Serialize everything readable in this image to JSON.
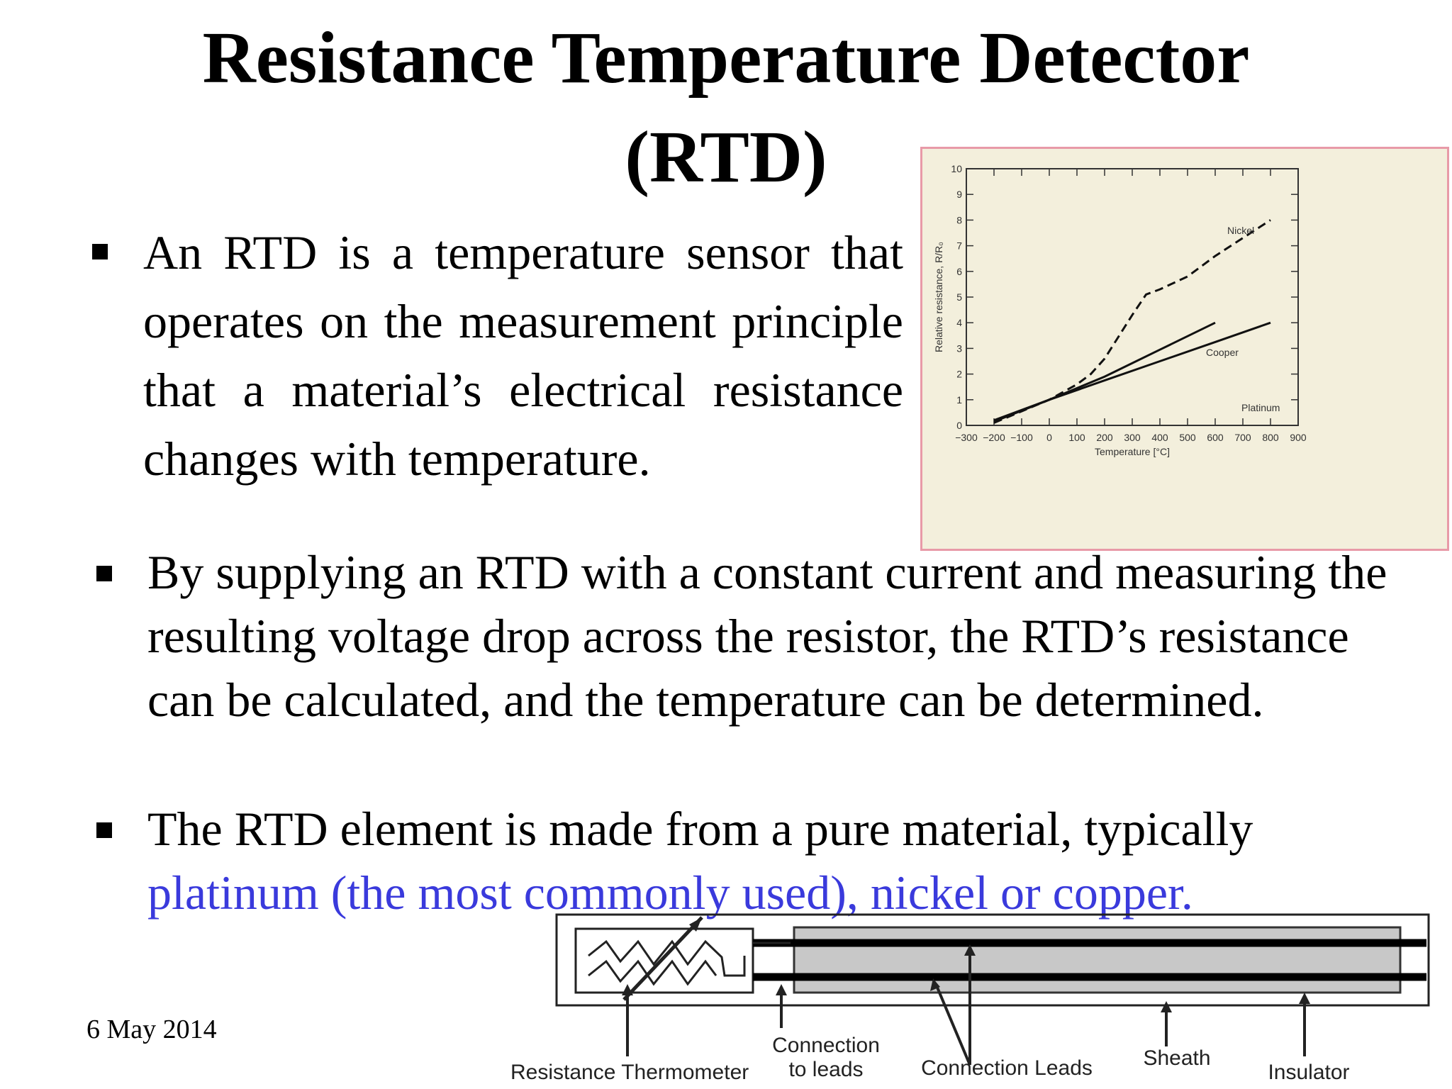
{
  "slide": {
    "title_line1": "Resistance Temperature Detector",
    "title_line2": "(RTD)",
    "bullets": [
      {
        "text": "An RTD is a temperature sensor that operates on the measurement principle that a material’s electrical resistance changes with temperature."
      },
      {
        "text": "By supplying an RTD with a constant current and measuring the resulting voltage drop across the resistor, the RTD’s resistance can be calculated, and the temperature can be determined."
      },
      {
        "text_plain": "The RTD element is made from a pure material, typically ",
        "text_blue": "platinum (the most commonly used), nickel or copper."
      }
    ],
    "date": "6 May 2014"
  },
  "chart_data": {
    "type": "line",
    "xlabel": "Temperature [°C]",
    "ylabel": "Relative resistance, R/R₀",
    "xlim": [
      -300,
      900
    ],
    "ylim": [
      0,
      10
    ],
    "x_ticks": [
      "−300",
      "−200",
      "−100",
      "0",
      "100",
      "200",
      "300",
      "400",
      "500",
      "600",
      "700",
      "800",
      "900"
    ],
    "y_ticks": [
      "0",
      "1",
      "2",
      "3",
      "4",
      "5",
      "6",
      "7",
      "8",
      "9",
      "10"
    ],
    "series": [
      {
        "name": "Nickel",
        "style": "dashed",
        "x": [
          -200,
          -100,
          0,
          100,
          150,
          200,
          300,
          350,
          400,
          500,
          600,
          700,
          800
        ],
        "y": [
          0.1,
          0.55,
          1.0,
          1.6,
          2.0,
          2.6,
          4.3,
          5.1,
          5.3,
          5.8,
          6.6,
          7.3,
          8.0
        ]
      },
      {
        "name": "Cooper",
        "style": "solid",
        "x": [
          -200,
          0,
          200,
          400,
          600
        ],
        "y": [
          0.15,
          1.0,
          1.9,
          2.95,
          4.0
        ]
      },
      {
        "name": "Platinum",
        "style": "solid",
        "x": [
          -200,
          0,
          200,
          400,
          600,
          800
        ],
        "y": [
          0.2,
          1.0,
          1.75,
          2.5,
          3.25,
          4.0
        ]
      }
    ]
  },
  "diagram": {
    "labels": {
      "resistance_thermometer": "Resistance Thermometer",
      "connection_to_leads_1": "Connection",
      "connection_to_leads_2": "to leads",
      "connection_leads": "Connection Leads",
      "sheath": "Sheath",
      "insulator": "Insulator"
    }
  }
}
